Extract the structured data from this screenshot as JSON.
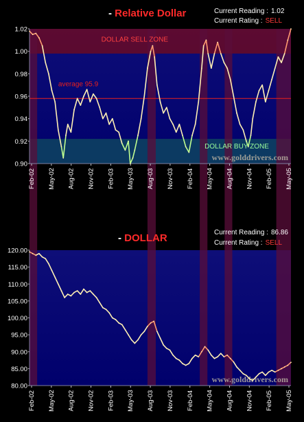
{
  "background": "#000000",
  "colors": {
    "plot_bg_top": "#0d0d72",
    "plot_bg_bottom": "#00006a",
    "line": "#fff0b4",
    "line_hot": "#ff9a70",
    "line_cold": "#bfff90",
    "zone_sell": "#6a0b24",
    "zone_buy": "#0d4060",
    "highlight_band": "#5a0d3a",
    "average_line": "#e8201c",
    "tick_text": "#ffffff",
    "title_red": "#ff2a2a",
    "watermark": "#b7b0a0"
  },
  "chart_data": [
    {
      "type": "line",
      "title": "Relative Dollar",
      "title_prefix": "- ",
      "reading_label": "Current Reading :",
      "reading_value": "1.02",
      "rating_label": "Current Rating :",
      "rating_value": "SELL",
      "ylim": [
        0.9,
        1.02
      ],
      "yticks": [
        "1.02",
        "1.00",
        "0.98",
        "0.96",
        "0.94",
        "0.92",
        "0.90"
      ],
      "ytick_values": [
        1.02,
        1.0,
        0.98,
        0.96,
        0.94,
        0.92,
        0.9
      ],
      "xticks": [
        "Feb-02",
        "May-02",
        "Aug-02",
        "Nov-02",
        "Feb-03",
        "May-03",
        "Aug-03",
        "Nov-03",
        "Feb-04",
        "May-04",
        "Aug-04",
        "Nov-04",
        "Feb-05",
        "May-05"
      ],
      "xlim": [
        0,
        41
      ],
      "sell_zone": {
        "label": "DOLLAR SELL ZONE",
        "from": 0.998,
        "to": 1.02
      },
      "buy_zone": {
        "label": "DOLLAR BUY ZONE",
        "from": 0.9,
        "to": 0.922
      },
      "average": {
        "label": "average 95.9",
        "value": 0.958
      },
      "watermark": "www.golddrivers.com",
      "highlight_bands": [
        [
          0,
          1.2
        ],
        [
          18.5,
          19.8
        ],
        [
          26.7,
          27.9
        ],
        [
          30.6,
          31.8
        ],
        [
          38.7,
          41
        ]
      ],
      "points": [
        [
          0,
          1.018
        ],
        [
          0.5,
          1.015
        ],
        [
          1,
          1.016
        ],
        [
          1.5,
          1.012
        ],
        [
          2,
          1.005
        ],
        [
          2.5,
          0.99
        ],
        [
          3,
          0.98
        ],
        [
          3.5,
          0.965
        ],
        [
          4,
          0.955
        ],
        [
          4.5,
          0.93
        ],
        [
          5,
          0.915
        ],
        [
          5.3,
          0.905
        ],
        [
          5.7,
          0.925
        ],
        [
          6,
          0.935
        ],
        [
          6.5,
          0.928
        ],
        [
          7,
          0.948
        ],
        [
          7.5,
          0.958
        ],
        [
          8,
          0.952
        ],
        [
          8.5,
          0.96
        ],
        [
          9,
          0.966
        ],
        [
          9.5,
          0.955
        ],
        [
          10,
          0.962
        ],
        [
          10.5,
          0.958
        ],
        [
          11,
          0.95
        ],
        [
          11.5,
          0.94
        ],
        [
          12,
          0.945
        ],
        [
          12.5,
          0.935
        ],
        [
          13,
          0.94
        ],
        [
          13.5,
          0.93
        ],
        [
          14,
          0.928
        ],
        [
          14.5,
          0.918
        ],
        [
          15,
          0.912
        ],
        [
          15.5,
          0.92
        ],
        [
          15.8,
          0.9
        ],
        [
          16.2,
          0.905
        ],
        [
          16.5,
          0.912
        ],
        [
          17,
          0.925
        ],
        [
          17.5,
          0.94
        ],
        [
          18,
          0.96
        ],
        [
          18.5,
          0.985
        ],
        [
          19,
          1.0
        ],
        [
          19.3,
          1.005
        ],
        [
          19.6,
          0.995
        ],
        [
          20,
          0.97
        ],
        [
          20.5,
          0.955
        ],
        [
          21,
          0.945
        ],
        [
          21.5,
          0.95
        ],
        [
          22,
          0.94
        ],
        [
          22.5,
          0.935
        ],
        [
          23,
          0.928
        ],
        [
          23.5,
          0.935
        ],
        [
          24,
          0.925
        ],
        [
          24.5,
          0.915
        ],
        [
          25,
          0.91
        ],
        [
          25.5,
          0.925
        ],
        [
          26,
          0.935
        ],
        [
          26.5,
          0.955
        ],
        [
          27,
          0.985
        ],
        [
          27.3,
          1.005
        ],
        [
          27.7,
          1.01
        ],
        [
          28,
          0.998
        ],
        [
          28.5,
          0.985
        ],
        [
          29,
          0.998
        ],
        [
          29.5,
          1.008
        ],
        [
          30,
          0.998
        ],
        [
          30.5,
          0.99
        ],
        [
          31,
          0.985
        ],
        [
          31.5,
          0.975
        ],
        [
          32,
          0.96
        ],
        [
          32.5,
          0.945
        ],
        [
          33,
          0.935
        ],
        [
          33.5,
          0.93
        ],
        [
          34,
          0.92
        ],
        [
          34.3,
          0.915
        ],
        [
          34.7,
          0.925
        ],
        [
          35,
          0.94
        ],
        [
          35.5,
          0.955
        ],
        [
          36,
          0.965
        ],
        [
          36.5,
          0.97
        ],
        [
          37,
          0.955
        ],
        [
          37.5,
          0.965
        ],
        [
          38,
          0.975
        ],
        [
          38.5,
          0.985
        ],
        [
          39,
          0.995
        ],
        [
          39.5,
          0.99
        ],
        [
          40,
          0.998
        ],
        [
          40.5,
          1.01
        ],
        [
          41,
          1.02
        ]
      ]
    },
    {
      "type": "line",
      "title": "DOLLAR",
      "title_prefix": "- ",
      "reading_label": "Current Reading :",
      "reading_value": "86.86",
      "rating_label": "Current Rating :",
      "rating_value": "SELL",
      "ylim": [
        80,
        120
      ],
      "yticks": [
        "120.00",
        "115.00",
        "110.00",
        "105.00",
        "100.00",
        "95.00",
        "90.00",
        "85.00",
        "80.00"
      ],
      "ytick_values": [
        120,
        115,
        110,
        105,
        100,
        95,
        90,
        85,
        80
      ],
      "xticks": [
        "Feb-02",
        "May-02",
        "Aug-02",
        "Nov-02",
        "Feb-03",
        "May-03",
        "Aug-03",
        "Nov-03",
        "Feb-04",
        "May-04",
        "Aug-04",
        "Nov-04",
        "Feb-05",
        "May-05"
      ],
      "xlim": [
        0,
        41
      ],
      "watermark": "www.golddrivers.com",
      "highlight_bands": [
        [
          0,
          1.2
        ],
        [
          18.5,
          19.8
        ],
        [
          26.7,
          27.9
        ],
        [
          30.6,
          31.8
        ],
        [
          38.7,
          41
        ]
      ],
      "points": [
        [
          0,
          119.5
        ],
        [
          0.5,
          119.0
        ],
        [
          1,
          118.5
        ],
        [
          1.5,
          119.0
        ],
        [
          2,
          118.0
        ],
        [
          2.5,
          117.5
        ],
        [
          3,
          116.0
        ],
        [
          3.5,
          114.0
        ],
        [
          4,
          112.0
        ],
        [
          4.5,
          110.0
        ],
        [
          5,
          108.0
        ],
        [
          5.5,
          106.0
        ],
        [
          6,
          107.0
        ],
        [
          6.5,
          106.5
        ],
        [
          7,
          107.5
        ],
        [
          7.5,
          108.0
        ],
        [
          8,
          107.0
        ],
        [
          8.5,
          108.5
        ],
        [
          9,
          107.5
        ],
        [
          9.5,
          108.0
        ],
        [
          10,
          107.0
        ],
        [
          10.5,
          106.0
        ],
        [
          11,
          104.5
        ],
        [
          11.5,
          103.0
        ],
        [
          12,
          102.5
        ],
        [
          12.5,
          101.5
        ],
        [
          13,
          100.0
        ],
        [
          13.5,
          99.5
        ],
        [
          14,
          98.5
        ],
        [
          14.5,
          98.0
        ],
        [
          15,
          96.5
        ],
        [
          15.5,
          95.0
        ],
        [
          16,
          93.5
        ],
        [
          16.5,
          92.5
        ],
        [
          17,
          93.5
        ],
        [
          17.5,
          95.0
        ],
        [
          18,
          96.0
        ],
        [
          18.5,
          97.5
        ],
        [
          19,
          98.5
        ],
        [
          19.5,
          99.0
        ],
        [
          20,
          96.0
        ],
        [
          20.5,
          94.0
        ],
        [
          21,
          92.0
        ],
        [
          21.5,
          91.0
        ],
        [
          22,
          90.5
        ],
        [
          22.5,
          89.0
        ],
        [
          23,
          88.0
        ],
        [
          23.5,
          87.5
        ],
        [
          24,
          86.5
        ],
        [
          24.5,
          86.0
        ],
        [
          25,
          86.5
        ],
        [
          25.5,
          88.0
        ],
        [
          26,
          89.0
        ],
        [
          26.5,
          88.5
        ],
        [
          27,
          90.0
        ],
        [
          27.5,
          91.5
        ],
        [
          28,
          90.5
        ],
        [
          28.5,
          89.0
        ],
        [
          29,
          88.0
        ],
        [
          29.5,
          88.5
        ],
        [
          30,
          89.5
        ],
        [
          30.5,
          88.5
        ],
        [
          31,
          89.0
        ],
        [
          31.5,
          88.0
        ],
        [
          32,
          87.0
        ],
        [
          32.5,
          85.5
        ],
        [
          33,
          84.5
        ],
        [
          33.5,
          83.5
        ],
        [
          34,
          83.0
        ],
        [
          34.5,
          82.0
        ],
        [
          35,
          81.5
        ],
        [
          35.5,
          82.5
        ],
        [
          36,
          83.5
        ],
        [
          36.5,
          84.0
        ],
        [
          37,
          83.0
        ],
        [
          37.5,
          84.0
        ],
        [
          38,
          84.5
        ],
        [
          38.5,
          84.0
        ],
        [
          39,
          84.5
        ],
        [
          39.5,
          85.0
        ],
        [
          40,
          85.5
        ],
        [
          40.5,
          86.0
        ],
        [
          41,
          86.86
        ]
      ]
    }
  ]
}
